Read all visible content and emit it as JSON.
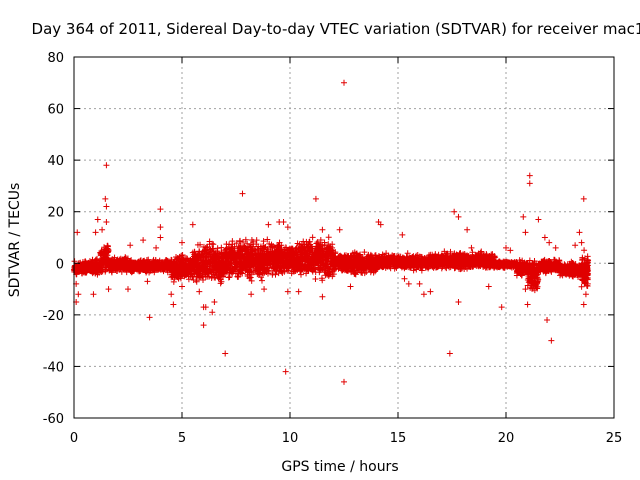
{
  "chart_data": {
    "type": "scatter",
    "title": "Day 364 of 2011, Sidereal Day-to-day VTEC variation (SDTVAR) for receiver mac1",
    "xlabel": "GPS time / hours",
    "ylabel": "SDTVAR / TECUs",
    "xlim": [
      0,
      25
    ],
    "ylim": [
      -60,
      80
    ],
    "xticks": [
      0,
      5,
      10,
      15,
      20,
      25
    ],
    "yticks": [
      -60,
      -40,
      -20,
      0,
      20,
      40,
      60,
      80
    ],
    "grid": true,
    "marker": "+",
    "color": "#e00000",
    "bands": [
      {
        "x": [
          0.0,
          0.5
        ],
        "y": [
          -5,
          1
        ]
      },
      {
        "x": [
          0.5,
          1.2
        ],
        "y": [
          -5,
          2
        ]
      },
      {
        "x": [
          1.2,
          1.6
        ],
        "y": [
          -6,
          10
        ]
      },
      {
        "x": [
          1.6,
          2.5
        ],
        "y": [
          -4,
          3
        ]
      },
      {
        "x": [
          2.5,
          4.5
        ],
        "y": [
          -4,
          2
        ]
      },
      {
        "x": [
          4.5,
          5.5
        ],
        "y": [
          -8,
          4
        ]
      },
      {
        "x": [
          5.5,
          7.0
        ],
        "y": [
          -10,
          10
        ]
      },
      {
        "x": [
          7.0,
          9.0
        ],
        "y": [
          -8,
          11
        ]
      },
      {
        "x": [
          9.0,
          10.5
        ],
        "y": [
          -6,
          9
        ]
      },
      {
        "x": [
          10.5,
          12.0
        ],
        "y": [
          -8,
          12
        ]
      },
      {
        "x": [
          12.0,
          14.0
        ],
        "y": [
          -5,
          5
        ]
      },
      {
        "x": [
          14.0,
          17.0
        ],
        "y": [
          -3,
          4
        ]
      },
      {
        "x": [
          17.0,
          19.5
        ],
        "y": [
          -3,
          5
        ]
      },
      {
        "x": [
          19.5,
          20.5
        ],
        "y": [
          -2,
          1
        ]
      },
      {
        "x": [
          20.5,
          21.0
        ],
        "y": [
          -6,
          2
        ]
      },
      {
        "x": [
          21.0,
          21.5
        ],
        "y": [
          -12,
          3
        ]
      },
      {
        "x": [
          21.5,
          22.5
        ],
        "y": [
          -4,
          2
        ]
      },
      {
        "x": [
          22.5,
          23.8
        ],
        "y": [
          -6,
          1
        ]
      },
      {
        "x": [
          23.5,
          23.8
        ],
        "y": [
          -12,
          6
        ]
      }
    ],
    "scatter_points": [
      {
        "x": 1.5,
        "y": 38
      },
      {
        "x": 1.45,
        "y": 25
      },
      {
        "x": 1.5,
        "y": 22
      },
      {
        "x": 1.5,
        "y": 16
      },
      {
        "x": 1.1,
        "y": 17
      },
      {
        "x": 1.0,
        "y": 12
      },
      {
        "x": 1.3,
        "y": 13
      },
      {
        "x": 0.15,
        "y": 12
      },
      {
        "x": 0.1,
        "y": -15
      },
      {
        "x": 0.2,
        "y": -12
      },
      {
        "x": 0.1,
        "y": -8
      },
      {
        "x": 0.9,
        "y": -12
      },
      {
        "x": 1.6,
        "y": -10
      },
      {
        "x": 2.5,
        "y": -10
      },
      {
        "x": 2.6,
        "y": 7
      },
      {
        "x": 3.2,
        "y": 9
      },
      {
        "x": 3.4,
        "y": -7
      },
      {
        "x": 3.5,
        "y": -21
      },
      {
        "x": 3.8,
        "y": 6
      },
      {
        "x": 4.0,
        "y": 21
      },
      {
        "x": 4.0,
        "y": 14
      },
      {
        "x": 4.0,
        "y": 10
      },
      {
        "x": 4.5,
        "y": -12
      },
      {
        "x": 4.6,
        "y": -16
      },
      {
        "x": 5.0,
        "y": 8
      },
      {
        "x": 5.0,
        "y": -9
      },
      {
        "x": 5.5,
        "y": 15
      },
      {
        "x": 5.8,
        "y": -11
      },
      {
        "x": 6.0,
        "y": -17
      },
      {
        "x": 6.0,
        "y": -24
      },
      {
        "x": 6.1,
        "y": -17
      },
      {
        "x": 6.4,
        "y": -19
      },
      {
        "x": 6.5,
        "y": -15
      },
      {
        "x": 7.0,
        "y": -35
      },
      {
        "x": 7.8,
        "y": 27
      },
      {
        "x": 8.2,
        "y": -12
      },
      {
        "x": 8.8,
        "y": -10
      },
      {
        "x": 9.0,
        "y": 15
      },
      {
        "x": 9.5,
        "y": 16
      },
      {
        "x": 9.7,
        "y": 16
      },
      {
        "x": 9.9,
        "y": 14
      },
      {
        "x": 9.8,
        "y": -42
      },
      {
        "x": 9.9,
        "y": -11
      },
      {
        "x": 10.4,
        "y": -11
      },
      {
        "x": 11.2,
        "y": 25
      },
      {
        "x": 11.5,
        "y": 13
      },
      {
        "x": 11.5,
        "y": -13
      },
      {
        "x": 12.5,
        "y": 70
      },
      {
        "x": 12.5,
        "y": -46
      },
      {
        "x": 12.3,
        "y": 13
      },
      {
        "x": 12.8,
        "y": -9
      },
      {
        "x": 14.1,
        "y": 16
      },
      {
        "x": 14.2,
        "y": 15
      },
      {
        "x": 15.2,
        "y": 11
      },
      {
        "x": 15.3,
        "y": -6
      },
      {
        "x": 15.5,
        "y": -8
      },
      {
        "x": 16.0,
        "y": -8
      },
      {
        "x": 16.2,
        "y": -12
      },
      {
        "x": 16.5,
        "y": -11
      },
      {
        "x": 17.4,
        "y": -35
      },
      {
        "x": 17.6,
        "y": 20
      },
      {
        "x": 17.8,
        "y": 18
      },
      {
        "x": 17.8,
        "y": -15
      },
      {
        "x": 18.2,
        "y": 13
      },
      {
        "x": 18.4,
        "y": 6
      },
      {
        "x": 19.2,
        "y": -9
      },
      {
        "x": 19.8,
        "y": -17
      },
      {
        "x": 20.0,
        "y": 6
      },
      {
        "x": 20.2,
        "y": 5
      },
      {
        "x": 20.8,
        "y": 18
      },
      {
        "x": 20.9,
        "y": 12
      },
      {
        "x": 20.9,
        "y": -10
      },
      {
        "x": 21.1,
        "y": 34
      },
      {
        "x": 21.1,
        "y": 31
      },
      {
        "x": 21.0,
        "y": -16
      },
      {
        "x": 21.5,
        "y": 17
      },
      {
        "x": 21.8,
        "y": 10
      },
      {
        "x": 21.9,
        "y": -22
      },
      {
        "x": 22.1,
        "y": -30
      },
      {
        "x": 22.0,
        "y": 8
      },
      {
        "x": 22.3,
        "y": 6
      },
      {
        "x": 23.2,
        "y": 7
      },
      {
        "x": 23.4,
        "y": 12
      },
      {
        "x": 23.6,
        "y": 25
      },
      {
        "x": 23.6,
        "y": -16
      },
      {
        "x": 23.7,
        "y": -12
      },
      {
        "x": 23.5,
        "y": 8
      }
    ]
  }
}
